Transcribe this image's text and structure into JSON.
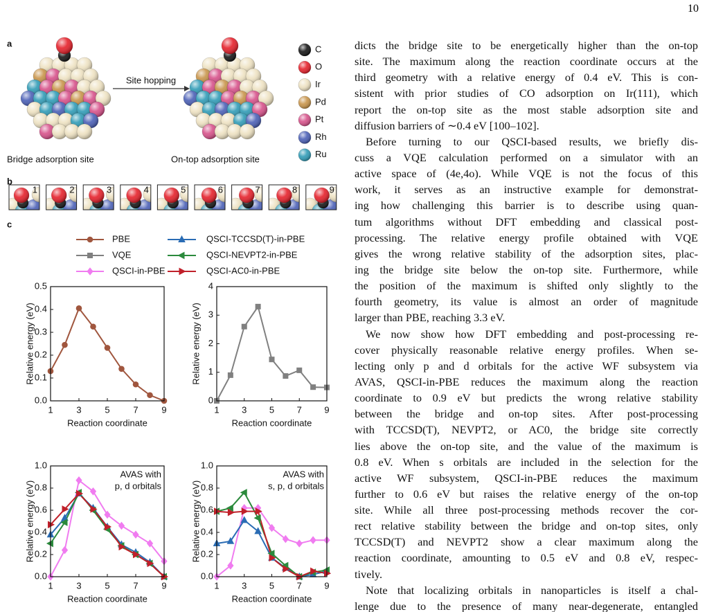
{
  "page_number": "10",
  "figure": {
    "panel_labels": [
      "a",
      "b",
      "c"
    ],
    "elements": [
      {
        "symbol": "C",
        "color": "#151515"
      },
      {
        "symbol": "O",
        "color": "#e5202a"
      },
      {
        "symbol": "Ir",
        "color": "#eee2c2"
      },
      {
        "symbol": "Pd",
        "color": "#c8944a"
      },
      {
        "symbol": "Pt",
        "color": "#d65089"
      },
      {
        "symbol": "Rh",
        "color": "#4a5fb6"
      },
      {
        "symbol": "Ru",
        "color": "#2f9bb6"
      }
    ],
    "arrow_label": "Site hopping",
    "site_labels": [
      "Bridge adsorption site",
      "On-top adsorption site"
    ],
    "geometry_labels": [
      1,
      2,
      3,
      4,
      5,
      6,
      7,
      8,
      9
    ],
    "legend": [
      {
        "name": "PBE",
        "color": "#a0563e",
        "marker": "circle"
      },
      {
        "name": "VQE",
        "color": "#808080",
        "marker": "square"
      },
      {
        "name": "QSCI-in-PBE",
        "color": "#f07cf0",
        "marker": "diamond"
      },
      {
        "name": "QSCI-TCCSD(T)-in-PBE",
        "color": "#2a6cb4",
        "marker": "triangle-up"
      },
      {
        "name": "QSCI-NEVPT2-in-PBE",
        "color": "#2b8a3c",
        "marker": "triangle-left"
      },
      {
        "name": "QSCI-AC0-in-PBE",
        "color": "#c0202a",
        "marker": "triangle-right"
      }
    ],
    "charts": [
      {
        "type": "line",
        "ylabel": "Relative energy (eV)",
        "xlabel": "Reaction coordinate",
        "x": [
          1,
          2,
          3,
          4,
          5,
          6,
          7,
          8,
          9
        ],
        "xlim": [
          1,
          9
        ],
        "xticks": [
          1,
          3,
          5,
          7,
          9
        ],
        "ylim": [
          0,
          0.5
        ],
        "yticks": [
          {
            "value": 0,
            "label": "0.0"
          },
          0.1,
          0.2,
          0.3,
          0.4,
          0.5
        ],
        "series": [
          {
            "name": "PBE",
            "color": "#a0563e",
            "values": [
              0.13,
              0.245,
              0.405,
              0.325,
              0.232,
              0.14,
              0.072,
              0.025,
              0.0
            ]
          }
        ]
      },
      {
        "type": "line",
        "ylabel": "Relative energy (eV)",
        "xlabel": "Reaction coordinate",
        "x": [
          1,
          2,
          3,
          4,
          5,
          6,
          7,
          8,
          9
        ],
        "xlim": [
          1,
          9
        ],
        "xticks": [
          1,
          3,
          5,
          7,
          9
        ],
        "ylim": [
          0,
          4
        ],
        "yticks": [
          0,
          1,
          2,
          3,
          4
        ],
        "series": [
          {
            "name": "VQE",
            "color": "#808080",
            "values": [
              0.0,
              0.9,
              2.6,
              3.3,
              1.45,
              0.87,
              1.07,
              0.48,
              0.47
            ]
          }
        ]
      },
      {
        "type": "line",
        "ylabel": "Relative energy (eV)",
        "xlabel": "Reaction coordinate",
        "annotation": [
          "AVAS with",
          "p, d orbitals"
        ],
        "x": [
          1,
          2,
          3,
          4,
          5,
          6,
          7,
          8,
          9
        ],
        "xlim": [
          1,
          9
        ],
        "xticks": [
          1,
          3,
          5,
          7,
          9
        ],
        "ylim": [
          0,
          1
        ],
        "yticks": [
          {
            "value": 0,
            "label": "0.0"
          },
          0.2,
          0.4,
          0.6,
          0.8,
          {
            "value": 1,
            "label": "1.0"
          }
        ],
        "series": [
          {
            "name": "QSCI-in-PBE",
            "color": "#f07cf0",
            "values": [
              0.0,
              0.24,
              0.87,
              0.77,
              0.56,
              0.46,
              0.38,
              0.3,
              0.14
            ]
          },
          {
            "name": "QSCI-TCCSD(T)-in-PBE",
            "color": "#2a6cb4",
            "values": [
              0.38,
              0.53,
              0.75,
              0.62,
              0.45,
              0.29,
              0.22,
              0.13,
              0.0
            ]
          },
          {
            "name": "QSCI-NEVPT2-in-PBE",
            "color": "#2b8a3c",
            "values": [
              0.3,
              0.49,
              0.76,
              0.6,
              0.43,
              0.28,
              0.2,
              0.12,
              0.0
            ]
          },
          {
            "name": "QSCI-AC0-in-PBE",
            "color": "#c0202a",
            "values": [
              0.47,
              0.61,
              0.75,
              0.61,
              0.45,
              0.27,
              0.2,
              0.12,
              0.0
            ]
          }
        ]
      },
      {
        "type": "line",
        "ylabel": "Relative energy (eV)",
        "xlabel": "Reaction coordinate",
        "annotation": [
          "AVAS with",
          "s, p, d orbitals"
        ],
        "x": [
          1,
          2,
          3,
          4,
          5,
          6,
          7,
          8,
          9
        ],
        "xlim": [
          1,
          9
        ],
        "xticks": [
          1,
          3,
          5,
          7,
          9
        ],
        "ylim": [
          0,
          1
        ],
        "yticks": [
          {
            "value": 0,
            "label": "0.0"
          },
          0.2,
          0.4,
          0.6,
          0.8,
          {
            "value": 1,
            "label": "1.0"
          }
        ],
        "series": [
          {
            "name": "QSCI-in-PBE",
            "color": "#f07cf0",
            "values": [
              0.0,
              0.1,
              0.62,
              0.62,
              0.44,
              0.34,
              0.3,
              0.33,
              0.33
            ]
          },
          {
            "name": "QSCI-TCCSD(T)-in-PBE",
            "color": "#2a6cb4",
            "values": [
              0.3,
              0.32,
              0.51,
              0.41,
              0.17,
              0.08,
              0.0,
              0.02,
              0.05
            ]
          },
          {
            "name": "QSCI-NEVPT2-in-PBE",
            "color": "#2b8a3c",
            "values": [
              0.59,
              0.62,
              0.76,
              0.53,
              0.21,
              0.1,
              0.0,
              0.04,
              0.06
            ]
          },
          {
            "name": "QSCI-AC0-in-PBE",
            "color": "#c0202a",
            "values": [
              0.59,
              0.58,
              0.59,
              0.59,
              0.17,
              0.07,
              0.0,
              0.05,
              0.03
            ]
          }
        ]
      }
    ]
  },
  "text": {
    "paragraphs": [
      [
        "dicts the bridge site to be energetically higher than the on-top",
        "site. The maximum along the reaction coordinate occurs at the",
        "third geometry with a relative energy of 0.4 eV. This is con-",
        "sistent with prior studies of CO adsorption on Ir(111), which",
        "report the on-top site as the most stable adsorption site and",
        "diffusion barriers of ∼0.4 eV [100–102]."
      ],
      [
        "Before turning to our QSCI-based results, we briefly dis-",
        "cuss a VQE calculation performed on a simulator with an",
        "active space of (4e,4o). While VQE is not the focus of this",
        "work, it serves as an instructive example for demonstrat-",
        "ing how challenging this barrier is to describe using quan-",
        "tum algorithms without DFT embedding and classical post-",
        "processing. The relative energy profile obtained with VQE",
        "gives the wrong relative stability of the adsorption sites, plac-",
        "ing the bridge site below the on-top site. Furthermore, while",
        "the position of the maximum is shifted only slightly to the",
        "fourth geometry, its value is almost an order of magnitude",
        "larger than PBE, reaching 3.3 eV."
      ],
      [
        "We now show how DFT embedding and post-processing re-",
        "cover physically reasonable relative energy profiles. When se-",
        "lecting only p and d orbitals for the active WF subsystem via",
        "AVAS, QSCI-in-PBE reduces the maximum along the reaction",
        "coordinate to 0.9 eV but predicts the wrong relative stability",
        "between the bridge and on-top sites. After post-processing",
        "with TCCSD(T), NEVPT2, or AC0, the bridge site correctly",
        "lies above the on-top site, and the value of the maximum is",
        "0.8 eV. When s orbitals are included in the selection for the",
        "active WF subsystem, QSCI-in-PBE reduces the maximum",
        "further to 0.6 eV but raises the relative energy of the on-top",
        "site. While all three post-processing methods recover the cor-",
        "rect relative stability between the bridge and on-top sites, only",
        "TCCSD(T) and NEVPT2 show a clear maximum along the",
        "reaction coordinate, amounting to 0.5 eV and 0.8 eV, respec-",
        "tively."
      ],
      [
        "Note that localizing orbitals in nanoparticles is itself a chal-",
        "lenge due to the presence of many near-degenerate, entangled"
      ]
    ]
  }
}
